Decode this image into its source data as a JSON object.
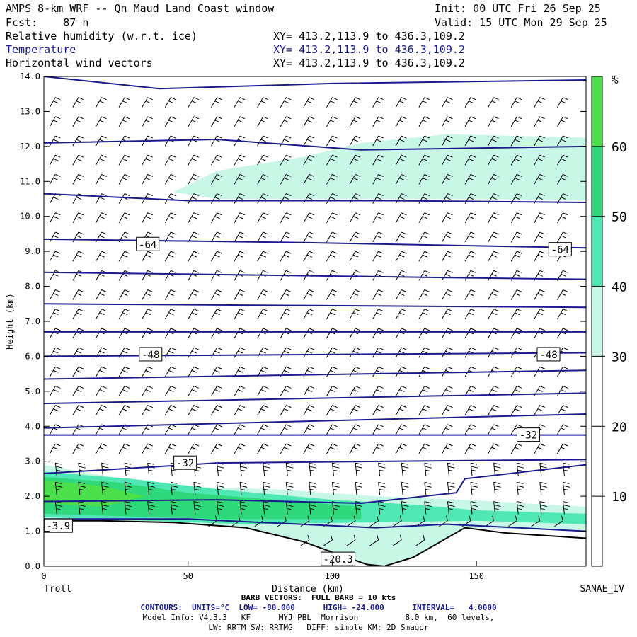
{
  "header": {
    "title": "AMPS 8-km WRF -- Qn Maud Land Coast window",
    "init": "Init: 00 UTC Fri 26 Sep 25",
    "forecast": "Fcst:    87 h",
    "valid": "Valid: 15 UTC Mon 29 Sep 25",
    "fields": [
      {
        "name": "Relative humidity (w.r.t. ice)",
        "xy": "XY= 413.2,113.9 to 436.3,109.2"
      },
      {
        "name": "Temperature",
        "xy": "XY= 413.2,113.9 to 436.3,109.2"
      },
      {
        "name": "Horizontal wind vectors",
        "xy": "XY= 413.2,113.9 to 436.3,109.2"
      }
    ]
  },
  "footer": {
    "start_label": "Troll",
    "end_label": "SANAE_IV",
    "barb_line": "BARB VECTORS:  FULL BARB = 10 kts",
    "contours_line": "CONTOURS:  UNITS=°C  LOW= -80.000      HIGH= -24.000      INTERVAL=   4.0000",
    "model_line1": "Model Info: V4.3.3   KF      MYJ PBL  Morrison          8.0 km,  60 levels,",
    "model_line2": "LW: RRTM SW: RRTMG   DIFF: simple KM: 2D Smagor"
  },
  "colors": {
    "temperature_contour": "#1a1a8c",
    "rh_30_40": "#c8f7e6",
    "rh_40_50": "#4fe8b4",
    "rh_50_60": "#2fd87a",
    "rh_60_plus": "#4be04b",
    "terrain": "#ffffff"
  },
  "chart_data": {
    "type": "cross-section",
    "xlabel": "Distance (km)",
    "ylabel": "Height (km)",
    "xlim": [
      0,
      188
    ],
    "ylim": [
      0,
      14
    ],
    "x_ticks": [
      "0",
      "50",
      "100",
      "150"
    ],
    "y_ticks": [
      "0.0",
      "1.0",
      "2.0",
      "3.0",
      "4.0",
      "5.0",
      "6.0",
      "7.0",
      "8.0",
      "9.0",
      "10.0",
      "11.0",
      "12.0",
      "13.0",
      "14.0"
    ],
    "colorbar": {
      "unit": "%",
      "ticks": [
        "10",
        "20",
        "30",
        "40",
        "50",
        "60"
      ],
      "levels": [
        {
          "from": 30,
          "to": 40,
          "color": "#c8f7e6"
        },
        {
          "from": 40,
          "to": 50,
          "color": "#4fe8b4"
        },
        {
          "from": 50,
          "to": 60,
          "color": "#2fd87a"
        },
        {
          "from": 60,
          "to": 70,
          "color": "#4be04b"
        }
      ]
    },
    "contour_labels": [
      {
        "text": "-64",
        "x": 36,
        "y": 9.2
      },
      {
        "text": "-64",
        "x": 179,
        "y": 9.05
      },
      {
        "text": "-48",
        "x": 37,
        "y": 6.05
      },
      {
        "text": "-48",
        "x": 175,
        "y": 6.05
      },
      {
        "text": "-32",
        "x": 49,
        "y": 2.95
      },
      {
        "text": "-32",
        "x": 168,
        "y": 3.75
      },
      {
        "text": "-20.3",
        "x": 102,
        "y": 0.2
      },
      {
        "text": "-3.9",
        "x": 5,
        "y": 1.15
      }
    ],
    "temperature_contours": [
      [
        [
          0,
          14.0
        ],
        [
          40,
          13.65
        ],
        [
          100,
          13.8
        ],
        [
          188,
          13.9
        ]
      ],
      [
        [
          0,
          12.1
        ],
        [
          60,
          12.2
        ],
        [
          110,
          11.9
        ],
        [
          188,
          12.0
        ]
      ],
      [
        [
          0,
          10.65
        ],
        [
          50,
          10.45
        ],
        [
          120,
          10.45
        ],
        [
          188,
          10.4
        ]
      ],
      [
        [
          0,
          9.35
        ],
        [
          90,
          9.25
        ],
        [
          188,
          9.1
        ]
      ],
      [
        [
          0,
          8.4
        ],
        [
          188,
          8.2
        ]
      ],
      [
        [
          0,
          7.5
        ],
        [
          188,
          7.4
        ]
      ],
      [
        [
          0,
          6.7
        ],
        [
          188,
          6.7
        ]
      ],
      [
        [
          0,
          6.0
        ],
        [
          188,
          6.1
        ]
      ],
      [
        [
          0,
          5.35
        ],
        [
          188,
          5.6
        ]
      ],
      [
        [
          0,
          4.65
        ],
        [
          188,
          4.95
        ]
      ],
      [
        [
          0,
          3.95
        ],
        [
          188,
          4.35
        ]
      ],
      [
        [
          0,
          3.75
        ],
        [
          188,
          3.75
        ]
      ],
      [
        [
          0,
          2.65
        ],
        [
          60,
          2.95
        ],
        [
          120,
          3.0
        ],
        [
          188,
          3.05
        ]
      ],
      [
        [
          0,
          1.85
        ],
        [
          60,
          1.9
        ],
        [
          110,
          1.8
        ],
        [
          143,
          2.1
        ],
        [
          146,
          2.5
        ],
        [
          188,
          2.9
        ]
      ],
      [
        [
          0,
          1.35
        ],
        [
          50,
          1.35
        ],
        [
          115,
          1.1
        ],
        [
          140,
          1.2
        ],
        [
          188,
          1.0
        ]
      ]
    ],
    "terrain": [
      [
        0,
        1.3
      ],
      [
        20,
        1.3
      ],
      [
        45,
        1.25
      ],
      [
        70,
        1.1
      ],
      [
        90,
        0.7
      ],
      [
        100,
        0.4
      ],
      [
        112,
        0.05
      ],
      [
        118,
        0.0
      ],
      [
        128,
        0.25
      ],
      [
        146,
        1.1
      ],
      [
        160,
        0.95
      ],
      [
        188,
        0.8
      ]
    ],
    "rh_regions": [
      {
        "level": 30,
        "points": [
          [
            45,
            10.7
          ],
          [
            60,
            11.3
          ],
          [
            90,
            11.7
          ],
          [
            110,
            12.1
          ],
          [
            140,
            12.35
          ],
          [
            188,
            12.25
          ],
          [
            188,
            10.45
          ],
          [
            150,
            10.5
          ],
          [
            120,
            10.5
          ],
          [
            60,
            10.5
          ]
        ]
      },
      {
        "level": 30,
        "points": [
          [
            0,
            2.9
          ],
          [
            40,
            2.3
          ],
          [
            80,
            2.2
          ],
          [
            115,
            2.0
          ],
          [
            145,
            1.9
          ],
          [
            188,
            1.7
          ],
          [
            188,
            1.0
          ],
          [
            146,
            1.1
          ],
          [
            128,
            0.25
          ],
          [
            118,
            0.0
          ],
          [
            112,
            0.05
          ],
          [
            100,
            0.4
          ],
          [
            90,
            0.7
          ],
          [
            70,
            1.1
          ],
          [
            45,
            1.25
          ],
          [
            0,
            1.3
          ]
        ]
      },
      {
        "level": 40,
        "points": [
          [
            0,
            2.7
          ],
          [
            30,
            2.5
          ],
          [
            60,
            2.2
          ],
          [
            100,
            1.9
          ],
          [
            130,
            1.75
          ],
          [
            150,
            1.6
          ],
          [
            188,
            1.5
          ],
          [
            188,
            1.2
          ],
          [
            150,
            1.3
          ],
          [
            110,
            1.25
          ],
          [
            70,
            1.2
          ],
          [
            0,
            1.4
          ]
        ]
      },
      {
        "level": 50,
        "points": [
          [
            0,
            2.55
          ],
          [
            25,
            2.4
          ],
          [
            50,
            2.1
          ],
          [
            80,
            1.9
          ],
          [
            110,
            1.7
          ],
          [
            110,
            1.35
          ],
          [
            60,
            1.35
          ],
          [
            0,
            1.5
          ]
        ]
      },
      {
        "level": 60,
        "points": [
          [
            0,
            2.45
          ],
          [
            20,
            2.3
          ],
          [
            35,
            2.0
          ],
          [
            20,
            1.7
          ],
          [
            0,
            1.8
          ]
        ]
      }
    ]
  }
}
